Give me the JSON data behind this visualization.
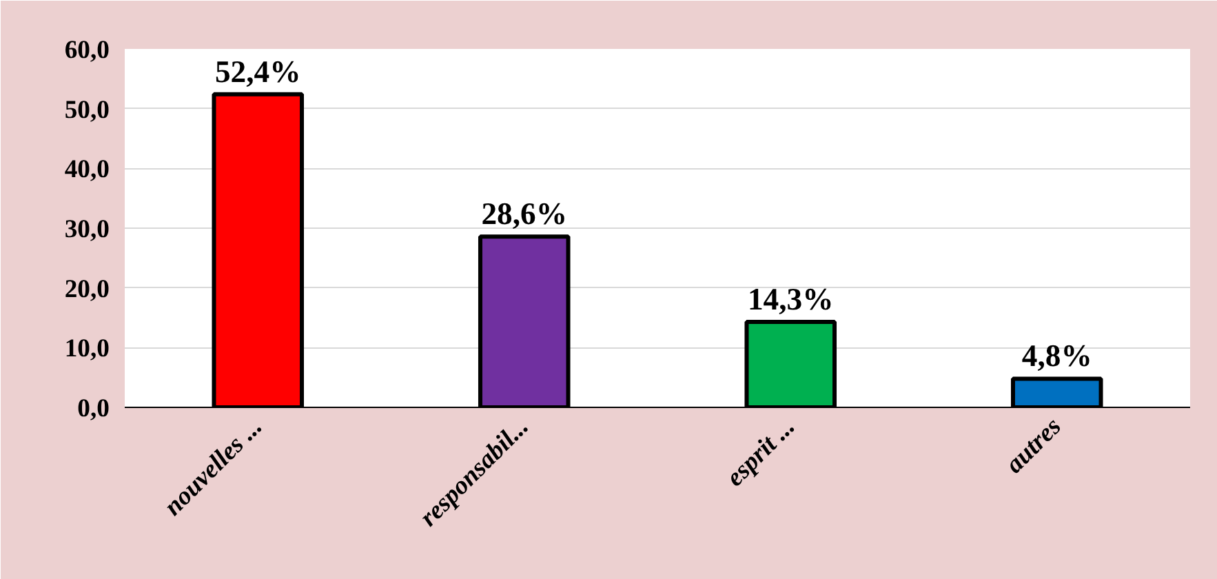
{
  "chart_data": {
    "type": "bar",
    "categories": [
      "nouvelles ...",
      "responsabil...",
      "esprit ...",
      "autres"
    ],
    "values": [
      52.4,
      28.6,
      14.3,
      4.8
    ],
    "colors": [
      "#ff0000",
      "#7030a0",
      "#00b050",
      "#0070c0"
    ],
    "value_labels": [
      "52,4%",
      "28,6%",
      "14,3%",
      "4,8%"
    ],
    "ylim": [
      0,
      60
    ],
    "yticks": [
      {
        "value": 0,
        "label": "0,0"
      },
      {
        "value": 10,
        "label": "10,0"
      },
      {
        "value": 20,
        "label": "20,0"
      },
      {
        "value": 30,
        "label": "30,0"
      },
      {
        "value": 40,
        "label": "40,0"
      },
      {
        "value": 50,
        "label": "50,0"
      },
      {
        "value": 60,
        "label": "60,0"
      }
    ],
    "grid": "y"
  }
}
